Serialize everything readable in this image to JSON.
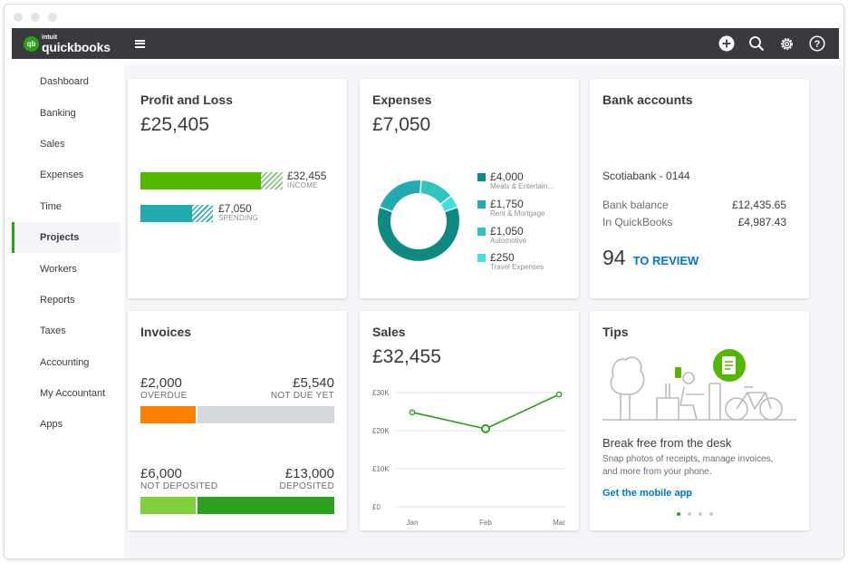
{
  "brand": {
    "intuit": "intuit",
    "name": "quickbooks",
    "badge": "qb"
  },
  "topbar": {
    "icons": [
      "plus-circle-icon",
      "search-icon",
      "gear-icon",
      "help-icon"
    ]
  },
  "sidebar": {
    "items": [
      {
        "label": "Dashboard"
      },
      {
        "label": "Banking"
      },
      {
        "label": "Sales"
      },
      {
        "label": "Expenses"
      },
      {
        "label": "Time"
      },
      {
        "label": "Projects",
        "active": true
      },
      {
        "label": "Workers"
      },
      {
        "label": "Reports"
      },
      {
        "label": "Taxes"
      },
      {
        "label": "Accounting"
      },
      {
        "label": "My Accountant"
      },
      {
        "label": "Apps"
      }
    ]
  },
  "profit_loss": {
    "title": "Profit and Loss",
    "amount": "£25,405",
    "income": {
      "value": "£32,455",
      "label": "INCOME"
    },
    "spending": {
      "value": "£7,050",
      "label": "SPENDING"
    }
  },
  "expenses": {
    "title": "Expenses",
    "amount": "£7,050",
    "items": [
      {
        "value": "£4,000",
        "label": "Meals & Entertain…",
        "color": "#0e8a83"
      },
      {
        "value": "£1,750",
        "label": "Rent & Mortgage",
        "color": "#21abb1"
      },
      {
        "value": "£1,050",
        "label": "Automotive",
        "color": "#2fc4c0"
      },
      {
        "value": "£250",
        "label": "Travel Expenses",
        "color": "#3fe0e0"
      }
    ]
  },
  "bank": {
    "title": "Bank accounts",
    "account": "Scotiabank - 0144",
    "bank_balance_label": "Bank balance",
    "bank_balance": "£12,435.65",
    "qb_label": "In QuickBooks",
    "qb_balance": "£4,987.43",
    "review_count": "94",
    "review_label": "TO REVIEW"
  },
  "invoices": {
    "title": "Invoices",
    "overdue": {
      "value": "£2,000",
      "label": "OVERDUE"
    },
    "not_due": {
      "value": "£5,540",
      "label": "NOT DUE YET"
    },
    "not_deposited": {
      "value": "£6,000",
      "label": "NOT DEPOSITED"
    },
    "deposited": {
      "value": "£13,000",
      "label": "DEPOSITED"
    }
  },
  "sales": {
    "title": "Sales",
    "amount": "£32,455"
  },
  "chart_data": {
    "type": "line",
    "x": [
      "Jan",
      "Feb",
      "Mar"
    ],
    "series": [
      {
        "values": [
          24800,
          20500,
          29500
        ]
      }
    ],
    "yticks": [
      "£0",
      "£10K",
      "£20K",
      "£30K"
    ],
    "ylim": [
      0,
      30000
    ],
    "grid": true,
    "color": "#2ca01c"
  },
  "tips": {
    "title": "Tips",
    "headline": "Break free from the desk",
    "body_line1": "Snap photos of receipts, manage invoices,",
    "body_line2": "and more from your phone.",
    "link": "Get the mobile app"
  },
  "colors": {
    "accent": "#2ca01c",
    "teal": "#21abb1",
    "orange": "#ff8000",
    "grey": "#d4d7dc",
    "link": "#0077c5"
  }
}
